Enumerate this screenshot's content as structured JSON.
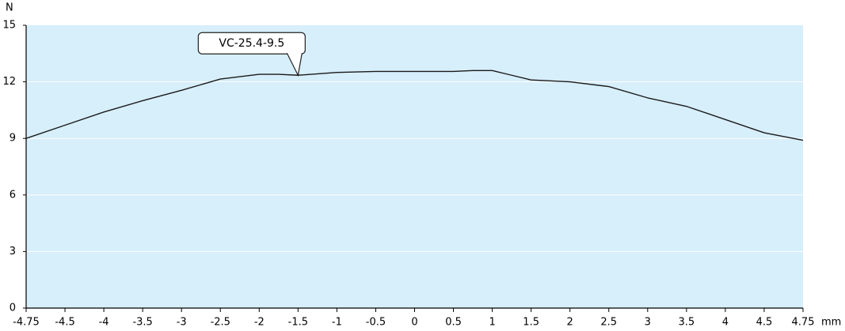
{
  "chart_data": {
    "type": "line",
    "title": "",
    "xlabel": "mm",
    "ylabel": "N",
    "x_ticks": [
      "-4.75",
      "-4.5",
      "-4",
      "-3.5",
      "-3",
      "-2.5",
      "-2",
      "-1.5",
      "-1",
      "-0.5",
      "0",
      "0.5",
      "1",
      "1.5",
      "2",
      "2.5",
      "3",
      "3.5",
      "4",
      "4.5",
      "4.75"
    ],
    "y_ticks": [
      "0",
      "3",
      "6",
      "9",
      "12",
      "15"
    ],
    "xlim": [
      -4.75,
      4.75
    ],
    "ylim": [
      0,
      15
    ],
    "grid": "horizontal",
    "legend": "callout",
    "series": [
      {
        "name": "VC-25.4-9.5",
        "label_x": -1.5,
        "x": [
          -4.75,
          -4.5,
          -4,
          -3.5,
          -3,
          -2.5,
          -2,
          -1.75,
          -1.5,
          -1,
          -0.5,
          0,
          0.5,
          0.75,
          1,
          1.25,
          1.5,
          2,
          2.5,
          3,
          3.5,
          4,
          4.5,
          4.75
        ],
        "y": [
          9.0,
          9.7,
          10.4,
          11.0,
          11.55,
          12.15,
          12.4,
          12.4,
          12.35,
          12.5,
          12.55,
          12.55,
          12.55,
          12.6,
          12.6,
          12.35,
          12.1,
          12.0,
          11.75,
          11.15,
          10.7,
          10.0,
          9.3,
          8.9
        ]
      }
    ]
  },
  "colors": {
    "plot_background": "#d7eefb",
    "grid": "#ffffff",
    "axis": "#000000",
    "line": "#1a1a1a",
    "callout_fill": "#ffffff",
    "callout_border": "#222222"
  }
}
